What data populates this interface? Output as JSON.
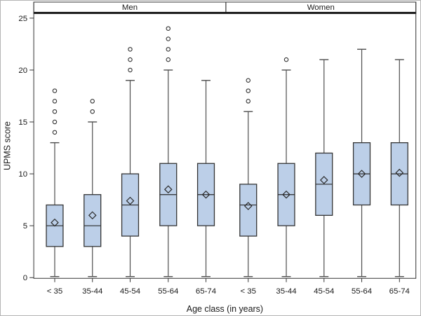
{
  "figure": {
    "title": "",
    "xlabel": "Age class (in years)",
    "ylabel": "UPMS score"
  },
  "chart_data": {
    "type": "boxplot",
    "title": "",
    "xlabel": "Age class (in years)",
    "ylabel": "UPMS score",
    "ylim": [
      0,
      25
    ],
    "yticks": [
      0,
      5,
      10,
      15,
      20,
      25
    ],
    "grid": false,
    "legend": "none",
    "categories": [
      "< 35",
      "35-44",
      "45-54",
      "55-64",
      "65-74"
    ],
    "panels": [
      {
        "label": "Men",
        "boxes": [
          {
            "category": "< 35",
            "whisker_low": 0,
            "q1": 3,
            "median": 5,
            "mean": 5.3,
            "q3": 7,
            "whisker_high": 13,
            "outliers": [
              14,
              15,
              16,
              17,
              18
            ]
          },
          {
            "category": "35-44",
            "whisker_low": 0,
            "q1": 3,
            "median": 5,
            "mean": 6.0,
            "q3": 8,
            "whisker_high": 15,
            "outliers": [
              16,
              17
            ]
          },
          {
            "category": "45-54",
            "whisker_low": 0,
            "q1": 4,
            "median": 7,
            "mean": 7.4,
            "q3": 10,
            "whisker_high": 19,
            "outliers": [
              20,
              21,
              22
            ]
          },
          {
            "category": "55-64",
            "whisker_low": 0,
            "q1": 5,
            "median": 8,
            "mean": 8.5,
            "q3": 11,
            "whisker_high": 20,
            "outliers": [
              21,
              22,
              23,
              24
            ]
          },
          {
            "category": "65-74",
            "whisker_low": 0,
            "q1": 5,
            "median": 8,
            "mean": 8.0,
            "q3": 11,
            "whisker_high": 19,
            "outliers": []
          }
        ]
      },
      {
        "label": "Women",
        "boxes": [
          {
            "category": "< 35",
            "whisker_low": 0,
            "q1": 4,
            "median": 7,
            "mean": 6.9,
            "q3": 9,
            "whisker_high": 16,
            "outliers": [
              17,
              18,
              19
            ]
          },
          {
            "category": "35-44",
            "whisker_low": 0,
            "q1": 5,
            "median": 8,
            "mean": 8.0,
            "q3": 11,
            "whisker_high": 20,
            "outliers": [
              21
            ]
          },
          {
            "category": "45-54",
            "whisker_low": 0,
            "q1": 6,
            "median": 9,
            "mean": 9.4,
            "q3": 12,
            "whisker_high": 21,
            "outliers": []
          },
          {
            "category": "55-64",
            "whisker_low": 0,
            "q1": 7,
            "median": 10,
            "mean": 10.0,
            "q3": 13,
            "whisker_high": 22,
            "outliers": []
          },
          {
            "category": "65-74",
            "whisker_low": 0,
            "q1": 7,
            "median": 10,
            "mean": 10.1,
            "q3": 13,
            "whisker_high": 21,
            "outliers": []
          }
        ]
      }
    ],
    "colors": {
      "box_fill": "#bccfe8",
      "box_stroke": "#333333",
      "whisker_stroke": "#4d4d4d",
      "median_stroke": "#2a2a2a",
      "mean_marker_stroke": "#2a2a2a",
      "outlier_stroke": "#333333",
      "frame_stroke": "#333333",
      "text": "#1a1a1a",
      "background": "#ffffff"
    },
    "marker_legend": {
      "diamond": "mean",
      "circle": "outlier",
      "horizontal_line_in_box": "median"
    }
  }
}
